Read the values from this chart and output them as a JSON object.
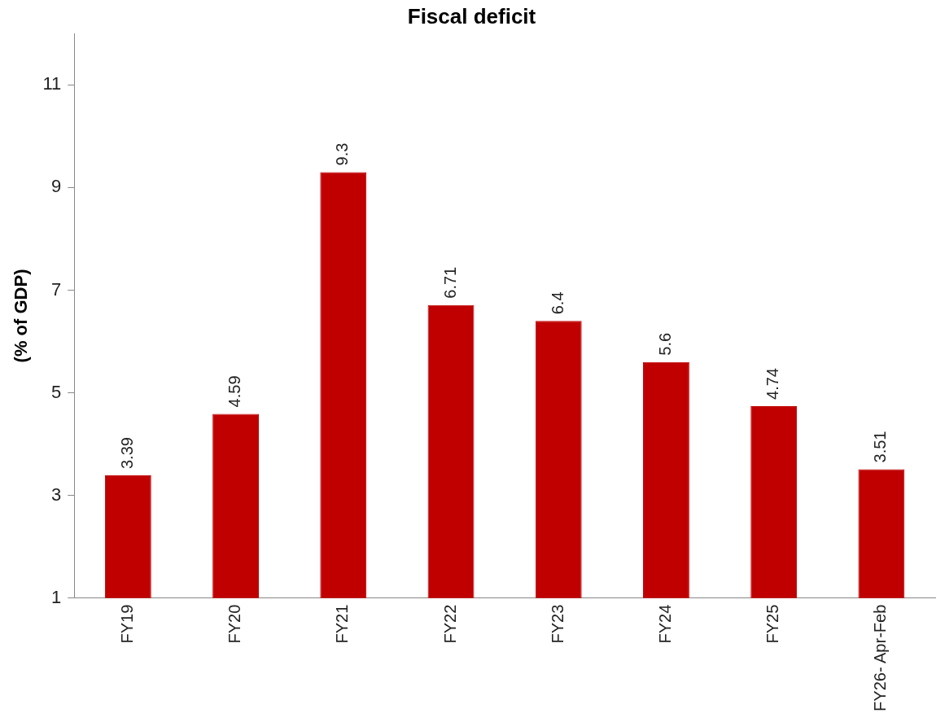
{
  "chart_data": {
    "type": "bar",
    "title": "Fiscal deficit",
    "ylabel": "(% of GDP)",
    "categories": [
      "FY19",
      "FY20",
      "FY21",
      "FY22",
      "FY23",
      "FY24",
      "FY25",
      "FY26- Apr-Feb"
    ],
    "values": [
      3.39,
      4.59,
      9.3,
      6.71,
      6.4,
      5.6,
      4.74,
      3.51
    ],
    "color": "#c00000",
    "ylim": [
      1,
      12
    ],
    "yticks": [
      1,
      3,
      5,
      7,
      9,
      11
    ],
    "grid": false,
    "legend": false,
    "data_labels": true
  }
}
